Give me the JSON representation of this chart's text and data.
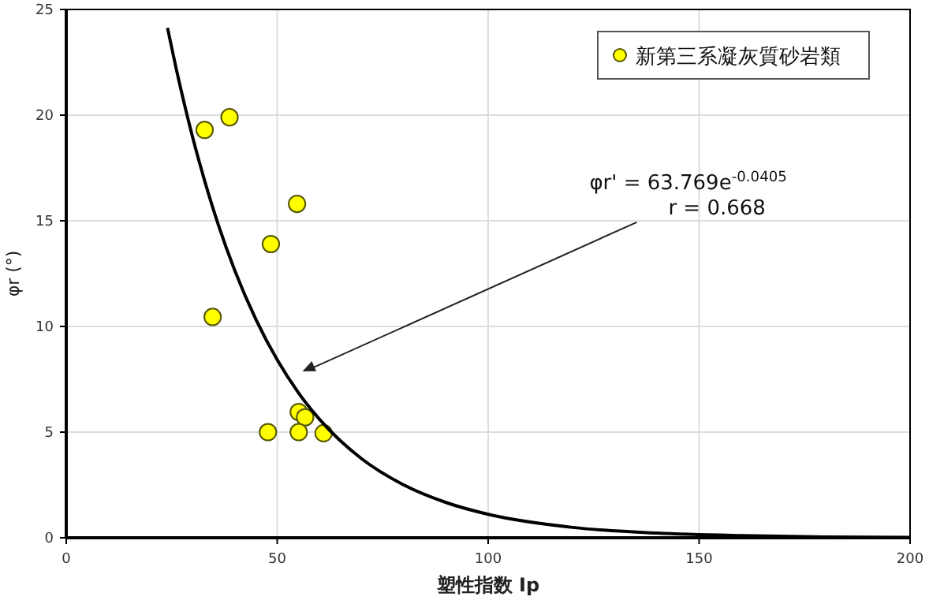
{
  "chart_data": {
    "type": "scatter",
    "xlabel": "塑性指数 Ip",
    "ylabel": "φr (°)",
    "xlim": [
      0,
      200
    ],
    "xticks": [
      0,
      50,
      100,
      150,
      200
    ],
    "ylim": [
      0,
      25
    ],
    "yticks": [
      0,
      5,
      10,
      15,
      20,
      25
    ],
    "grid": true,
    "legend": "top right",
    "series": [
      {
        "name": "新第三系凝灰質砂岩類",
        "color": "#ffff00",
        "marker": "circle",
        "x": [
          32.8,
          38.7,
          54.7,
          48.5,
          34.7,
          55.1,
          56.6,
          47.8,
          55.1,
          61
        ],
        "values": [
          19.3,
          19.9,
          15.8,
          13.9,
          10.45,
          5.95,
          5.7,
          5.0,
          5.0,
          4.95
        ]
      },
      {
        "type": "line",
        "color": "#000000",
        "marker": "none",
        "line_style": "solid",
        "x": [
          24,
          26,
          28,
          30,
          33,
          36,
          40,
          45,
          50,
          55,
          60,
          70,
          80,
          90,
          100,
          120,
          140,
          160,
          180,
          200
        ],
        "values": [
          24.13,
          22.25,
          20.52,
          18.92,
          16.76,
          14.84,
          12.62,
          10.31,
          8.42,
          6.87,
          5.61,
          3.74,
          2.5,
          1.67,
          1.11,
          0.49,
          0.22,
          0.1,
          0.04,
          0.02
        ]
      }
    ],
    "annotations": [
      "φr' = 63.769e$^{-0.0405}$",
      "r = 0.668"
    ]
  }
}
